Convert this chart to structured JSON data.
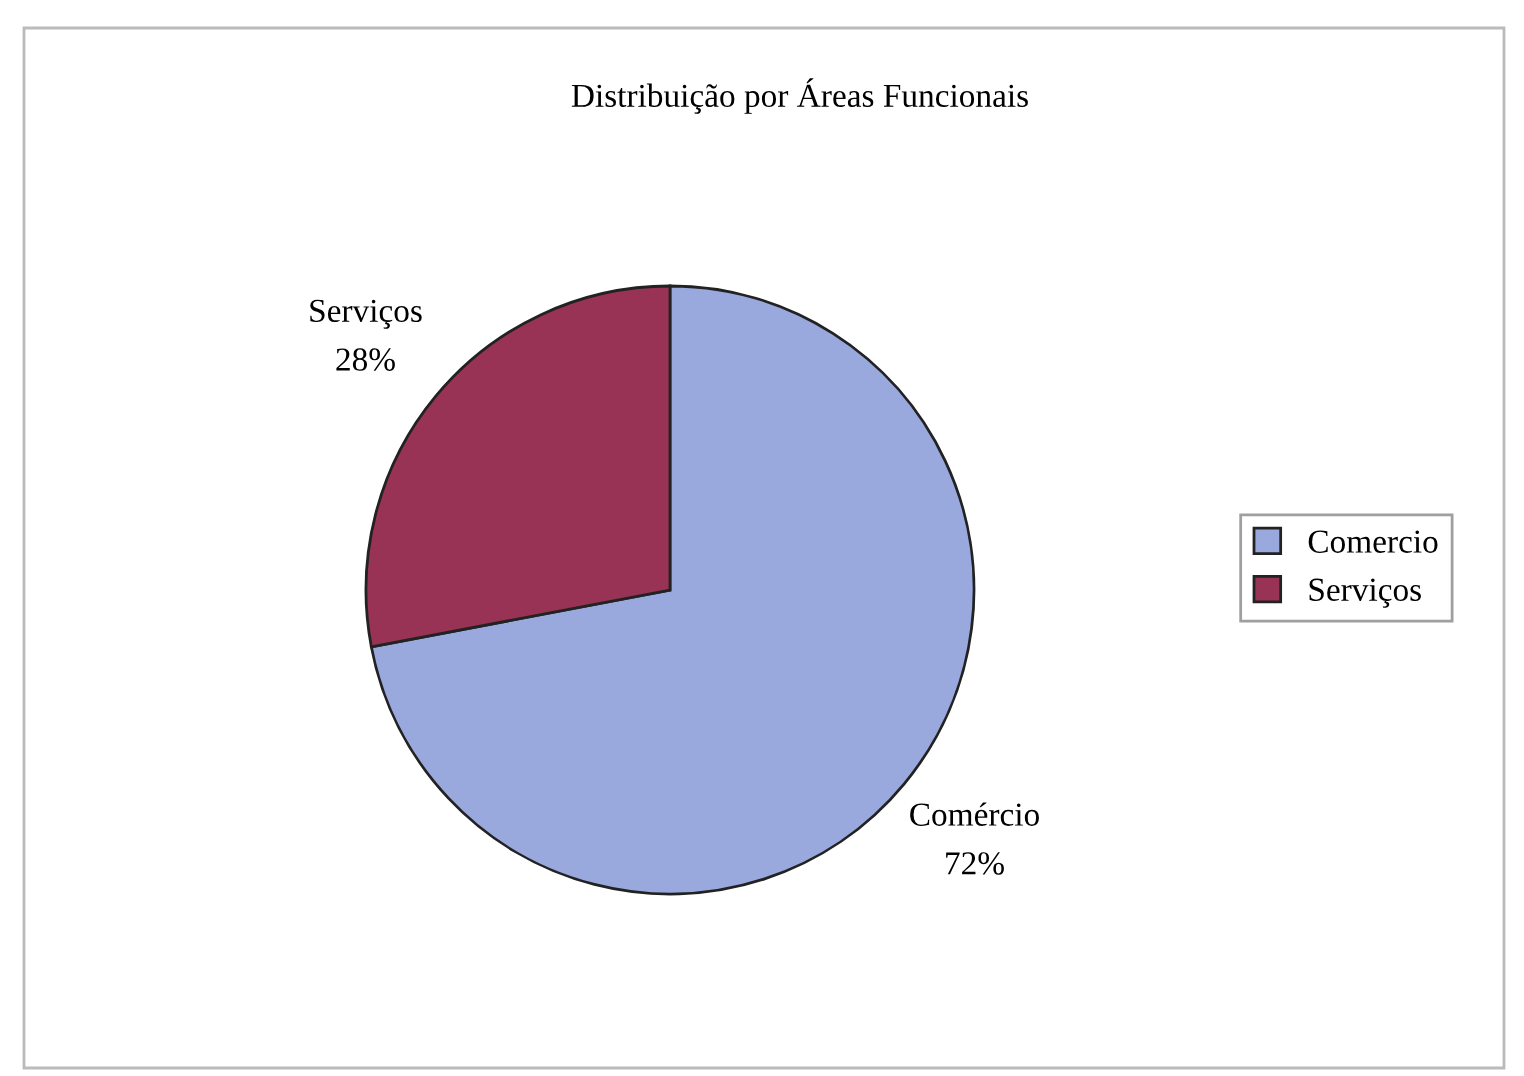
{
  "chart_data": {
    "type": "pie",
    "title": "Distribuição por Áreas Funcionais",
    "categories": [
      "Comercio",
      "Serviços"
    ],
    "values": [
      72,
      28
    ],
    "value_labels": [
      "Comércio\n72%",
      "Serviços\n28%"
    ],
    "colors": [
      "#99a8dd",
      "#993355"
    ],
    "legend": "right"
  }
}
